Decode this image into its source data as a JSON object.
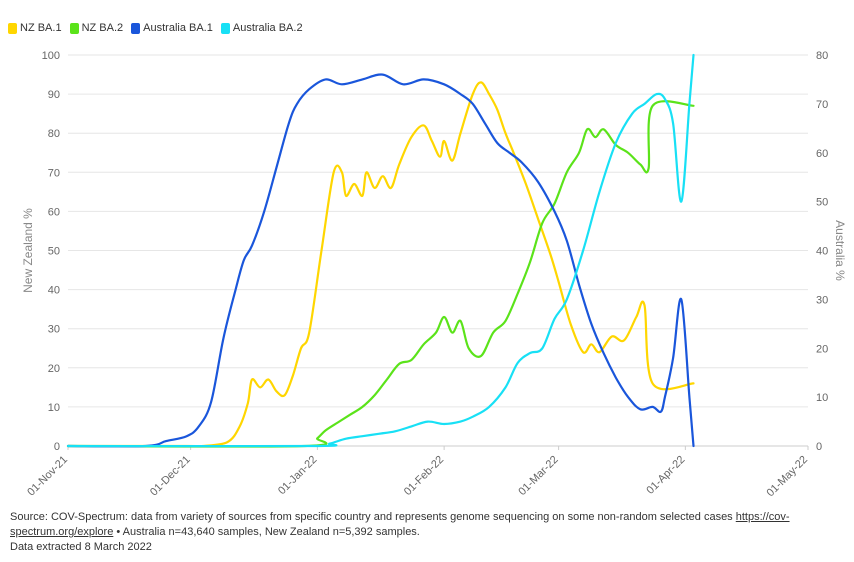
{
  "chart_data": {
    "type": "line",
    "title": "",
    "y_left_label": "New Zealand %",
    "y_right_label": "Australia %",
    "y_left_range": [
      0,
      100
    ],
    "y_right_range": [
      0,
      80
    ],
    "y_left_ticks": [
      "0",
      "10",
      "20",
      "30",
      "40",
      "50",
      "60",
      "70",
      "80",
      "90",
      "100"
    ],
    "y_right_ticks": [
      "0",
      "10",
      "20",
      "30",
      "40",
      "50",
      "60",
      "70",
      "80"
    ],
    "x_range": [
      "2021-11-01",
      "2022-05-01"
    ],
    "x_ticks": [
      {
        "date": "2021-11-01",
        "label": "01-Nov-21"
      },
      {
        "date": "2021-12-01",
        "label": "01-Dec-21"
      },
      {
        "date": "2022-01-01",
        "label": "01-Jan-22"
      },
      {
        "date": "2022-02-01",
        "label": "01-Feb-22"
      },
      {
        "date": "2022-03-01",
        "label": "01-Mar-22"
      },
      {
        "date": "2022-04-01",
        "label": "01-Apr-22"
      },
      {
        "date": "2022-05-01",
        "label": "01-May-22"
      }
    ],
    "grid": true,
    "legend_position": "top-left",
    "series": [
      {
        "name": "NZ BA.1",
        "color": "#ffd600",
        "axis": "left",
        "points": [
          [
            "2021-11-01",
            0
          ],
          [
            "2021-11-30",
            0
          ],
          [
            "2021-12-04",
            0
          ],
          [
            "2021-12-10",
            1
          ],
          [
            "2021-12-13",
            5
          ],
          [
            "2021-12-15",
            11
          ],
          [
            "2021-12-16",
            17
          ],
          [
            "2021-12-18",
            15
          ],
          [
            "2021-12-20",
            17
          ],
          [
            "2021-12-22",
            14
          ],
          [
            "2021-12-24",
            13
          ],
          [
            "2021-12-26",
            18
          ],
          [
            "2021-12-28",
            25
          ],
          [
            "2021-12-30",
            29
          ],
          [
            "2022-01-02",
            50
          ],
          [
            "2022-01-05",
            70
          ],
          [
            "2022-01-07",
            70
          ],
          [
            "2022-01-08",
            64
          ],
          [
            "2022-01-10",
            67
          ],
          [
            "2022-01-12",
            64
          ],
          [
            "2022-01-13",
            70
          ],
          [
            "2022-01-15",
            66
          ],
          [
            "2022-01-17",
            69
          ],
          [
            "2022-01-19",
            66
          ],
          [
            "2022-01-21",
            72
          ],
          [
            "2022-01-24",
            79
          ],
          [
            "2022-01-27",
            82
          ],
          [
            "2022-01-29",
            78
          ],
          [
            "2022-01-31",
            74
          ],
          [
            "2022-02-01",
            78
          ],
          [
            "2022-02-03",
            73
          ],
          [
            "2022-02-05",
            80
          ],
          [
            "2022-02-08",
            90
          ],
          [
            "2022-02-10",
            93
          ],
          [
            "2022-02-12",
            90
          ],
          [
            "2022-02-14",
            86
          ],
          [
            "2022-02-16",
            80
          ],
          [
            "2022-02-18",
            75
          ],
          [
            "2022-02-21",
            67
          ],
          [
            "2022-02-24",
            58
          ],
          [
            "2022-02-27",
            49
          ],
          [
            "2022-03-01",
            42
          ],
          [
            "2022-03-04",
            31
          ],
          [
            "2022-03-07",
            24
          ],
          [
            "2022-03-09",
            26
          ],
          [
            "2022-03-11",
            24
          ],
          [
            "2022-03-14",
            28
          ],
          [
            "2022-03-17",
            27
          ],
          [
            "2022-03-20",
            33
          ],
          [
            "2022-03-22",
            36
          ],
          [
            "2022-03-24",
            16
          ],
          [
            "2022-04-03",
            16
          ]
        ]
      },
      {
        "name": "NZ BA.2",
        "color": "#5be31a",
        "axis": "left",
        "points": [
          [
            "2021-11-01",
            0
          ],
          [
            "2021-12-29",
            0
          ],
          [
            "2022-01-01",
            2
          ],
          [
            "2022-01-03",
            4
          ],
          [
            "2022-01-06",
            6
          ],
          [
            "2022-01-09",
            8
          ],
          [
            "2022-01-12",
            10
          ],
          [
            "2022-01-15",
            13
          ],
          [
            "2022-01-18",
            17
          ],
          [
            "2022-01-21",
            21
          ],
          [
            "2022-01-24",
            22
          ],
          [
            "2022-01-27",
            26
          ],
          [
            "2022-01-30",
            29
          ],
          [
            "2022-02-01",
            33
          ],
          [
            "2022-02-03",
            29
          ],
          [
            "2022-02-05",
            32
          ],
          [
            "2022-02-07",
            25
          ],
          [
            "2022-02-10",
            23
          ],
          [
            "2022-02-13",
            29
          ],
          [
            "2022-02-16",
            32
          ],
          [
            "2022-02-19",
            39
          ],
          [
            "2022-02-22",
            47
          ],
          [
            "2022-02-25",
            57
          ],
          [
            "2022-02-28",
            62
          ],
          [
            "2022-03-03",
            70
          ],
          [
            "2022-03-06",
            75
          ],
          [
            "2022-03-08",
            81
          ],
          [
            "2022-03-10",
            79
          ],
          [
            "2022-03-12",
            81
          ],
          [
            "2022-03-15",
            77
          ],
          [
            "2022-03-18",
            75
          ],
          [
            "2022-03-21",
            72
          ],
          [
            "2022-03-23",
            71
          ],
          [
            "2022-03-24",
            87
          ],
          [
            "2022-04-03",
            87
          ]
        ]
      },
      {
        "name": "Australia BA.1",
        "color": "#1a56db",
        "axis": "right",
        "points": [
          [
            "2021-11-01",
            0
          ],
          [
            "2021-11-20",
            0
          ],
          [
            "2021-11-25",
            1
          ],
          [
            "2021-11-30",
            2
          ],
          [
            "2021-12-03",
            4
          ],
          [
            "2021-12-06",
            9
          ],
          [
            "2021-12-09",
            22
          ],
          [
            "2021-12-12",
            32
          ],
          [
            "2021-12-14",
            38
          ],
          [
            "2021-12-16",
            41
          ],
          [
            "2021-12-19",
            48
          ],
          [
            "2021-12-22",
            57
          ],
          [
            "2021-12-25",
            66
          ],
          [
            "2021-12-27",
            70
          ],
          [
            "2021-12-30",
            73
          ],
          [
            "2022-01-03",
            75
          ],
          [
            "2022-01-07",
            74
          ],
          [
            "2022-01-12",
            75
          ],
          [
            "2022-01-17",
            76
          ],
          [
            "2022-01-22",
            74
          ],
          [
            "2022-01-27",
            75
          ],
          [
            "2022-02-01",
            74
          ],
          [
            "2022-02-05",
            72
          ],
          [
            "2022-02-08",
            70
          ],
          [
            "2022-02-11",
            66
          ],
          [
            "2022-02-14",
            62
          ],
          [
            "2022-02-17",
            60
          ],
          [
            "2022-02-20",
            58
          ],
          [
            "2022-02-24",
            54
          ],
          [
            "2022-02-28",
            48
          ],
          [
            "2022-03-03",
            42
          ],
          [
            "2022-03-06",
            33
          ],
          [
            "2022-03-09",
            25
          ],
          [
            "2022-03-12",
            19
          ],
          [
            "2022-03-15",
            14
          ],
          [
            "2022-03-18",
            10
          ],
          [
            "2022-03-21",
            7.5
          ],
          [
            "2022-03-24",
            8
          ],
          [
            "2022-03-26",
            7
          ],
          [
            "2022-03-27",
            10
          ],
          [
            "2022-03-29",
            18
          ],
          [
            "2022-03-31",
            30
          ],
          [
            "2022-04-02",
            10
          ],
          [
            "2022-04-03",
            0
          ]
        ]
      },
      {
        "name": "Australia BA.2",
        "color": "#18e0f5",
        "axis": "right",
        "points": [
          [
            "2021-11-01",
            0
          ],
          [
            "2021-12-31",
            0
          ],
          [
            "2022-01-04",
            0.5
          ],
          [
            "2022-01-08",
            1.5
          ],
          [
            "2022-01-12",
            2
          ],
          [
            "2022-01-16",
            2.5
          ],
          [
            "2022-01-20",
            3
          ],
          [
            "2022-01-24",
            4
          ],
          [
            "2022-01-28",
            5
          ],
          [
            "2022-02-01",
            4.5
          ],
          [
            "2022-02-05",
            5
          ],
          [
            "2022-02-08",
            6
          ],
          [
            "2022-02-12",
            8
          ],
          [
            "2022-02-16",
            12
          ],
          [
            "2022-02-19",
            17
          ],
          [
            "2022-02-22",
            19
          ],
          [
            "2022-02-25",
            20
          ],
          [
            "2022-02-28",
            26
          ],
          [
            "2022-03-03",
            30
          ],
          [
            "2022-03-07",
            40
          ],
          [
            "2022-03-11",
            52
          ],
          [
            "2022-03-15",
            62
          ],
          [
            "2022-03-19",
            68
          ],
          [
            "2022-03-22",
            70
          ],
          [
            "2022-03-25",
            72
          ],
          [
            "2022-03-27",
            71
          ],
          [
            "2022-03-29",
            66
          ],
          [
            "2022-03-31",
            50
          ],
          [
            "2022-04-02",
            70
          ],
          [
            "2022-04-03",
            80
          ]
        ]
      }
    ]
  },
  "footer": {
    "source_prefix": "Source: COV-Spectrum: data from variety of sources from specific country and represents genome sequencing on some non-random selected cases ",
    "source_link": "https://cov-spectrum.org/explore",
    "source_suffix": " • Australia n=43,640 samples, New Zealand n=5,392 samples.",
    "extracted": "Data extracted 8 March 2022"
  }
}
